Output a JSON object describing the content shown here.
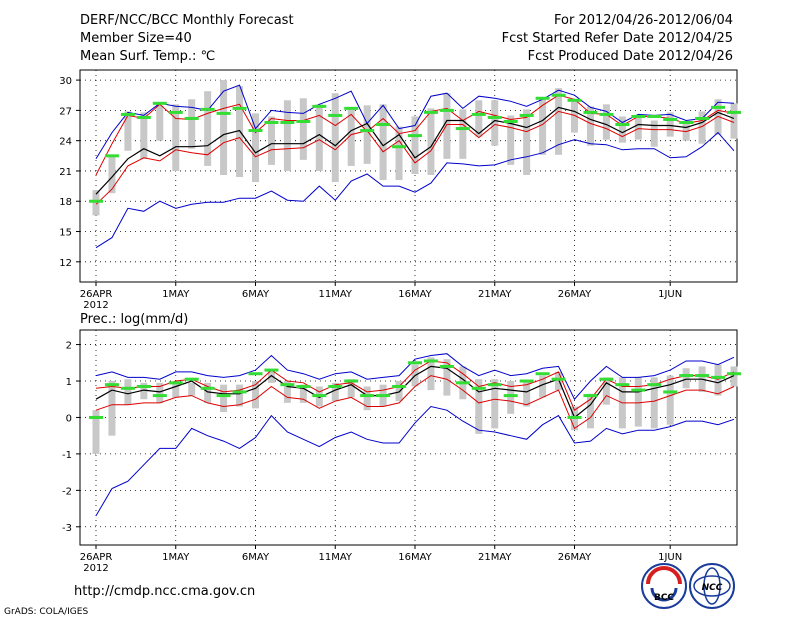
{
  "header": {
    "title": "DERF/NCC/BCC Monthly Forecast",
    "member_size": "Member Size=40",
    "variable": "Mean Surf. Temp.: ℃",
    "period": "For 2012/04/26-2012/06/04",
    "started": "Fcst Started Refer Date 2012/04/25",
    "produced": "Fcst Produced Date 2012/04/26"
  },
  "footer": {
    "url": "http://cmdp.ncc.cma.gov.cn",
    "grads": "GrADS: COLA/IGES",
    "logo_left": "BCC",
    "logo_right": "NCC"
  },
  "colors": {
    "max_min": "#0000cc",
    "mean": "#000000",
    "quartile": "#dd0000",
    "median": "#33dd33",
    "box": "#c8c8c8"
  },
  "chart_data": [
    {
      "type": "box-line",
      "title": "Mean Surf. Temp.: ℃",
      "ylabel": "",
      "ylim": [
        10,
        31
      ],
      "yticks": [
        12,
        15,
        18,
        21,
        24,
        27,
        30
      ],
      "x_dates": [
        "26APR",
        "1MAY",
        "6MAY",
        "11MAY",
        "16MAY",
        "21MAY",
        "26MAY",
        "1JUN"
      ],
      "x_date_index": [
        0,
        5,
        10,
        15,
        20,
        25,
        30,
        36
      ],
      "x_year_label": "2012",
      "grid": true,
      "series": [
        {
          "name": "max",
          "values": [
            22.2,
            24.8,
            26.8,
            26.5,
            27.7,
            27.4,
            27.3,
            27.0,
            28.9,
            29.5,
            25.2,
            27.0,
            26.8,
            26.7,
            27.6,
            28.2,
            28.9,
            25.7,
            27.5,
            25.2,
            25.5,
            28.4,
            28.7,
            27.2,
            28.4,
            28.2,
            27.9,
            27.4,
            28.1,
            29.0,
            28.5,
            27.3,
            26.9,
            25.8,
            26.6,
            26.5,
            26.6,
            26.0,
            26.2,
            27.8,
            27.7
          ]
        },
        {
          "name": "q75",
          "values": [
            20.6,
            23.7,
            26.5,
            26.2,
            27.6,
            26.2,
            26.1,
            26.7,
            27.2,
            27.6,
            24.8,
            26.2,
            26.0,
            26.0,
            26.5,
            25.5,
            26.6,
            24.9,
            26.2,
            24.7,
            25.0,
            26.9,
            27.2,
            26.0,
            26.9,
            26.5,
            26.1,
            26.3,
            27.5,
            28.5,
            28.1,
            26.7,
            26.6,
            25.5,
            26.4,
            26.4,
            26.2,
            25.7,
            26.0,
            27.0,
            26.7
          ]
        },
        {
          "name": "mean",
          "values": [
            18.7,
            20.4,
            22.2,
            23.2,
            22.5,
            23.4,
            23.4,
            23.5,
            24.6,
            25.0,
            22.8,
            23.7,
            23.7,
            23.7,
            24.6,
            23.5,
            25.0,
            25.7,
            23.5,
            24.6,
            22.3,
            23.4,
            26.0,
            26.0,
            24.7,
            26.0,
            25.7,
            25.3,
            26.0,
            27.3,
            26.9,
            26.1,
            25.6,
            24.8,
            25.6,
            25.5,
            25.5,
            25.3,
            25.8,
            26.8,
            26.2
          ]
        },
        {
          "name": "q25",
          "values": [
            17.7,
            19.2,
            21.5,
            22.3,
            22.0,
            23.1,
            22.8,
            22.6,
            23.8,
            24.3,
            22.4,
            23.1,
            23.2,
            23.3,
            24.1,
            23.1,
            24.6,
            25.0,
            22.9,
            24.0,
            21.8,
            23.0,
            25.6,
            25.6,
            24.3,
            25.6,
            25.3,
            24.9,
            25.6,
            26.9,
            26.5,
            25.7,
            25.2,
            24.4,
            25.2,
            25.1,
            25.1,
            24.9,
            25.4,
            26.4,
            25.8
          ]
        },
        {
          "name": "min",
          "values": [
            13.4,
            14.4,
            17.3,
            17.0,
            18.0,
            17.3,
            17.7,
            17.9,
            17.9,
            18.3,
            18.3,
            19.0,
            18.1,
            18.0,
            19.5,
            18.1,
            20.0,
            20.7,
            19.5,
            19.5,
            18.9,
            19.8,
            21.8,
            21.7,
            21.5,
            21.6,
            22.1,
            22.4,
            22.8,
            23.6,
            24.1,
            23.7,
            23.6,
            23.1,
            23.2,
            23.2,
            22.3,
            22.4,
            23.4,
            24.8,
            23.0
          ]
        },
        {
          "name": "median",
          "values": [
            18.0,
            22.5,
            26.6,
            26.3,
            27.7,
            26.8,
            26.2,
            27.1,
            26.7,
            27.2,
            25.0,
            25.8,
            25.8,
            25.9,
            27.4,
            26.5,
            27.2,
            25.0,
            25.6,
            23.4,
            24.5,
            26.8,
            27.0,
            25.2,
            26.6,
            26.3,
            25.9,
            26.5,
            28.2,
            28.5,
            28.0,
            26.8,
            26.6,
            25.6,
            26.4,
            26.4,
            26.1,
            25.8,
            26.2,
            27.3,
            26.8
          ]
        }
      ],
      "boxes_low": [
        16.6,
        18.8,
        23.0,
        22.2,
        24.0,
        21.0,
        23.2,
        21.5,
        20.6,
        20.4,
        19.9,
        21.6,
        21.0,
        22.1,
        21.0,
        19.9,
        21.5,
        21.7,
        20.1,
        20.1,
        20.7,
        20.6,
        22.2,
        22.2,
        24.4,
        23.5,
        21.6,
        20.6,
        22.6,
        22.6,
        24.8,
        23.5,
        24.1,
        23.8,
        24.1,
        23.4,
        24.4,
        24.0,
        23.7,
        24.6,
        24.2
      ],
      "boxes_high": [
        19.1,
        22.5,
        26.9,
        26.8,
        27.5,
        27.6,
        28.1,
        28.9,
        30.0,
        29.4,
        26.7,
        26.4,
        28.0,
        28.2,
        27.6,
        28.7,
        27.2,
        27.5,
        27.6,
        25.4,
        26.4,
        27.2,
        28.7,
        27.1,
        28.0,
        28.0,
        26.5,
        27.1,
        28.1,
        29.2,
        28.1,
        27.4,
        27.6,
        26.4,
        26.4,
        26.0,
        26.8,
        25.7,
        26.9,
        28.1,
        27.7
      ]
    },
    {
      "type": "box-line",
      "title": "Prec.: log(mm/d)",
      "ylabel": "",
      "ylim": [
        -3.5,
        2.4
      ],
      "yticks": [
        -3,
        -2,
        -1,
        0,
        1,
        2
      ],
      "x_dates": [
        "26APR",
        "1MAY",
        "6MAY",
        "11MAY",
        "16MAY",
        "21MAY",
        "26MAY",
        "1JUN"
      ],
      "x_date_index": [
        0,
        5,
        10,
        15,
        20,
        25,
        30,
        36
      ],
      "x_year_label": "2012",
      "grid": true,
      "series": [
        {
          "name": "max",
          "values": [
            1.15,
            1.25,
            1.1,
            1.1,
            1.05,
            1.25,
            1.25,
            1.15,
            1.1,
            1.15,
            1.3,
            1.7,
            1.3,
            1.2,
            1.05,
            1.2,
            1.25,
            1.05,
            1.1,
            1.15,
            1.6,
            1.7,
            1.75,
            1.4,
            1.15,
            1.3,
            1.15,
            1.2,
            1.35,
            1.4,
            0.5,
            1.0,
            1.4,
            1.1,
            1.1,
            1.15,
            1.3,
            1.55,
            1.55,
            1.45,
            1.65
          ]
        },
        {
          "name": "q75",
          "values": [
            0.8,
            0.85,
            0.8,
            0.85,
            0.85,
            1.0,
            1.05,
            0.85,
            0.7,
            0.75,
            0.9,
            1.3,
            1.0,
            0.95,
            0.7,
            0.9,
            0.95,
            0.7,
            0.75,
            0.85,
            1.3,
            1.55,
            1.5,
            1.2,
            0.85,
            0.95,
            0.85,
            0.9,
            1.05,
            1.25,
            0.2,
            0.5,
            1.05,
            0.85,
            0.85,
            0.9,
            1.05,
            1.15,
            1.15,
            1.05,
            1.25
          ]
        },
        {
          "name": "mean",
          "values": [
            0.5,
            0.75,
            0.65,
            0.75,
            0.7,
            0.85,
            1.0,
            0.7,
            0.65,
            0.65,
            0.8,
            1.15,
            0.85,
            0.8,
            0.55,
            0.75,
            0.9,
            0.6,
            0.6,
            0.7,
            1.15,
            1.4,
            1.35,
            1.05,
            0.7,
            0.8,
            0.75,
            0.7,
            0.9,
            1.05,
            0.0,
            0.35,
            0.95,
            0.7,
            0.7,
            0.8,
            0.9,
            1.05,
            1.05,
            0.95,
            1.15
          ]
        },
        {
          "name": "q25",
          "values": [
            0.2,
            0.35,
            0.35,
            0.4,
            0.4,
            0.55,
            0.6,
            0.4,
            0.3,
            0.35,
            0.5,
            0.85,
            0.55,
            0.5,
            0.25,
            0.45,
            0.55,
            0.3,
            0.3,
            0.4,
            0.85,
            1.15,
            1.05,
            0.75,
            0.4,
            0.5,
            0.45,
            0.35,
            0.55,
            0.75,
            -0.3,
            0.0,
            0.6,
            0.4,
            0.4,
            0.45,
            0.6,
            0.75,
            0.75,
            0.65,
            0.85
          ]
        },
        {
          "name": "min",
          "values": [
            -2.7,
            -1.95,
            -1.75,
            -1.3,
            -0.85,
            -0.85,
            -0.3,
            -0.5,
            -0.65,
            -0.85,
            -0.55,
            0.05,
            -0.4,
            -0.6,
            -0.8,
            -0.55,
            -0.4,
            -0.6,
            -0.7,
            -0.7,
            -0.15,
            0.3,
            0.2,
            -0.1,
            -0.35,
            -0.4,
            -0.5,
            -0.6,
            -0.2,
            0.05,
            -0.7,
            -0.65,
            -0.3,
            -0.45,
            -0.35,
            -0.35,
            -0.25,
            -0.1,
            -0.1,
            -0.2,
            -0.05
          ]
        },
        {
          "name": "median",
          "values": [
            0.0,
            0.9,
            0.8,
            0.85,
            0.6,
            0.95,
            1.05,
            0.8,
            0.6,
            0.7,
            1.2,
            1.3,
            0.9,
            0.85,
            0.6,
            0.85,
            1.0,
            0.6,
            0.6,
            0.85,
            1.5,
            1.55,
            1.4,
            0.95,
            0.8,
            0.9,
            0.6,
            1.0,
            1.2,
            1.05,
            0.0,
            0.6,
            1.05,
            0.9,
            0.75,
            0.9,
            0.7,
            1.15,
            1.15,
            1.1,
            1.2
          ]
        }
      ],
      "boxes_low": [
        -1.0,
        -0.5,
        0.35,
        0.5,
        0.4,
        0.55,
        0.6,
        0.4,
        0.15,
        0.3,
        0.25,
        0.95,
        0.4,
        0.4,
        0.3,
        0.45,
        0.55,
        0.2,
        0.3,
        0.45,
        0.85,
        0.75,
        0.6,
        0.5,
        -0.45,
        -0.3,
        0.1,
        0.3,
        0.55,
        0.75,
        -0.35,
        -0.3,
        0.35,
        -0.3,
        -0.25,
        -0.3,
        -0.2,
        0.8,
        0.7,
        0.6,
        0.85
      ],
      "boxes_high": [
        0.2,
        1.0,
        1.05,
        0.95,
        0.95,
        0.95,
        0.95,
        0.95,
        0.9,
        0.9,
        1.0,
        1.3,
        1.0,
        0.9,
        0.85,
        0.95,
        1.05,
        0.85,
        0.9,
        1.0,
        1.45,
        1.65,
        1.6,
        1.4,
        1.05,
        1.05,
        1.0,
        1.0,
        1.15,
        1.25,
        0.3,
        0.65,
        1.1,
        1.1,
        1.1,
        1.1,
        1.15,
        1.35,
        1.4,
        1.45,
        1.4
      ]
    }
  ]
}
